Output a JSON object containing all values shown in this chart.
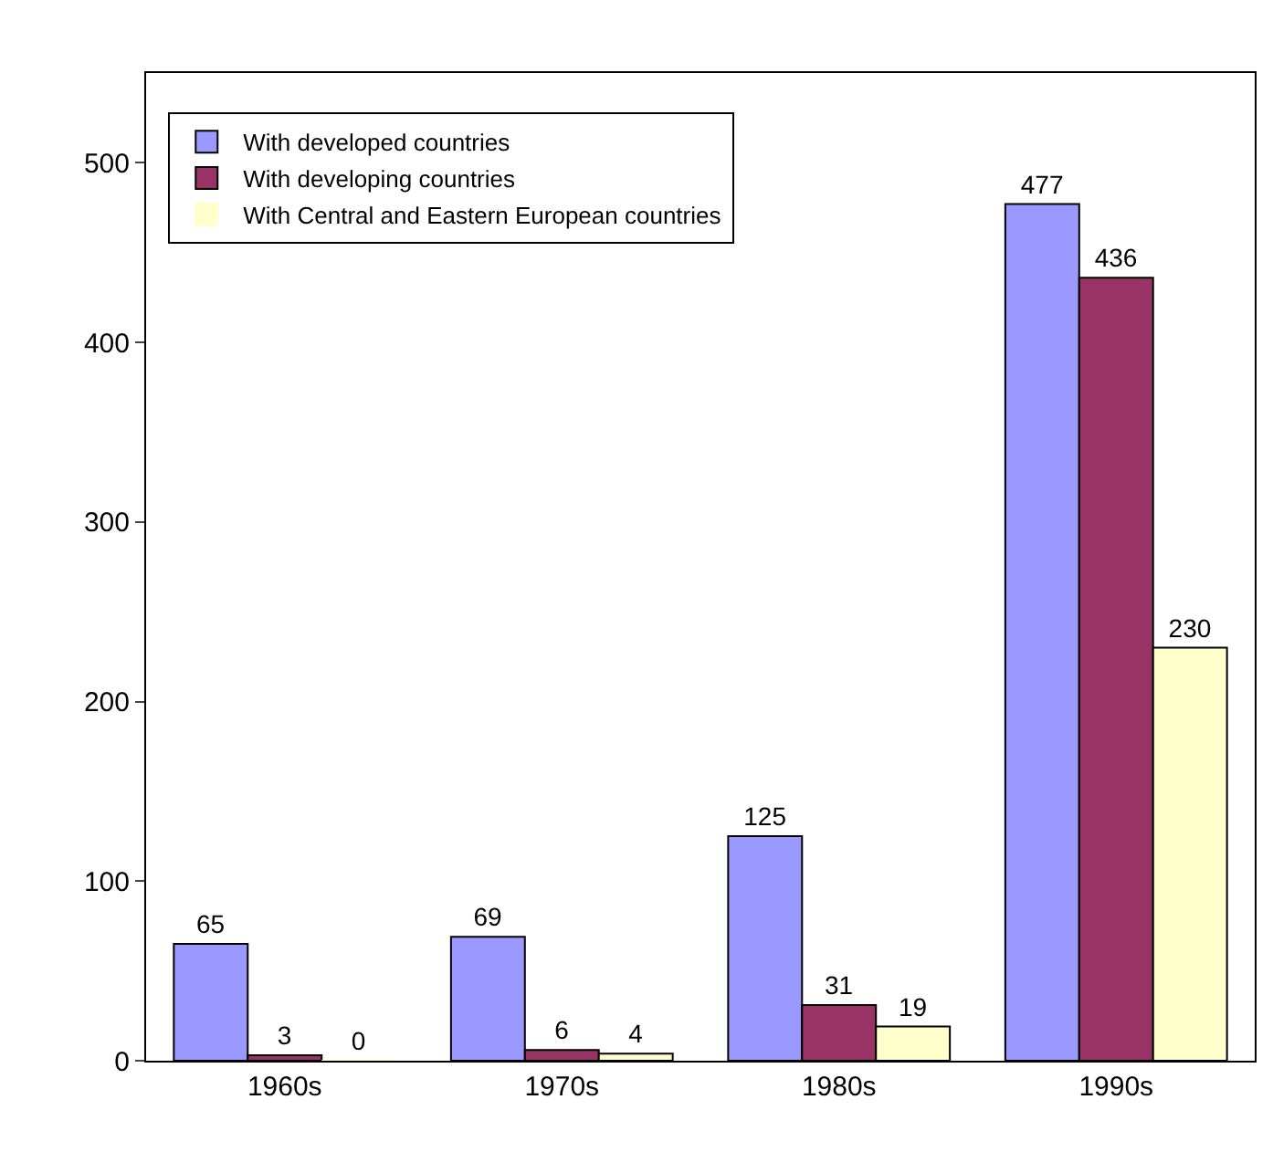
{
  "chart_data": {
    "type": "bar",
    "categories": [
      "1960s",
      "1970s",
      "1980s",
      "1990s"
    ],
    "series": [
      {
        "name": "With developed countries",
        "color": "#9999ff",
        "values": [
          65,
          69,
          125,
          477
        ]
      },
      {
        "name": "With developing countries",
        "color": "#993366",
        "values": [
          3,
          6,
          31,
          436
        ]
      },
      {
        "name": "With Central and Eastern European countries",
        "color": "#ffffcc",
        "values": [
          0,
          4,
          19,
          230
        ]
      }
    ],
    "ylim": [
      0,
      550
    ],
    "yticks": [
      0,
      100,
      200,
      300,
      400,
      500
    ],
    "legend": "top left",
    "data_labels": true
  }
}
